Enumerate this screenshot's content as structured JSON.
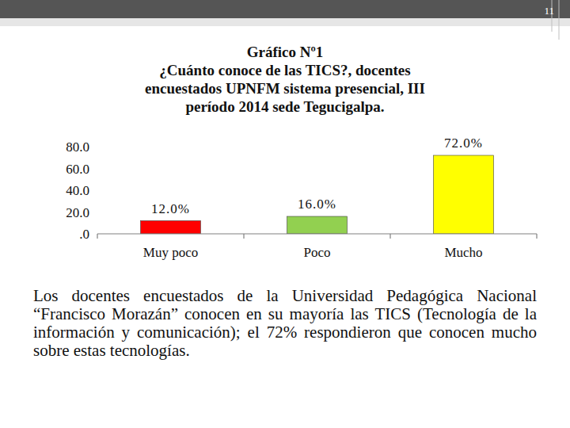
{
  "chart_data": {
    "type": "bar",
    "title": "Gráfico Nº1",
    "subtitle": "¿Cuánto conoce de las TICS?, docentes\nencuestados  UPNFM sistema presencial, III\nperíodo 2014 sede Tegucigalpa.",
    "categories": [
      "Muy poco",
      "Poco",
      "Mucho"
    ],
    "values": [
      12.0,
      16.0,
      72.0
    ],
    "value_labels": [
      "12.0%",
      "16.0%",
      "72.0%"
    ],
    "colors": [
      "#ff0000",
      "#92d050",
      "#ffff00"
    ],
    "ylim": [
      0,
      80
    ],
    "yticks": [
      {
        "value": 0,
        "label": ".0"
      },
      {
        "value": 20,
        "label": "20.0"
      },
      {
        "value": 40,
        "label": "40.0"
      },
      {
        "value": 60,
        "label": "60.0"
      },
      {
        "value": 80,
        "label": "80.0"
      }
    ],
    "grid": false,
    "data_labels": true
  },
  "page_number": "11",
  "caption": "Los docentes encuestados de la Universidad Pedagógica Nacional “Francisco Morazán” conocen en su mayoría las TICS (Tecnología de la información y comunicación); el 72% respondieron que conocen mucho sobre estas tecnologías."
}
